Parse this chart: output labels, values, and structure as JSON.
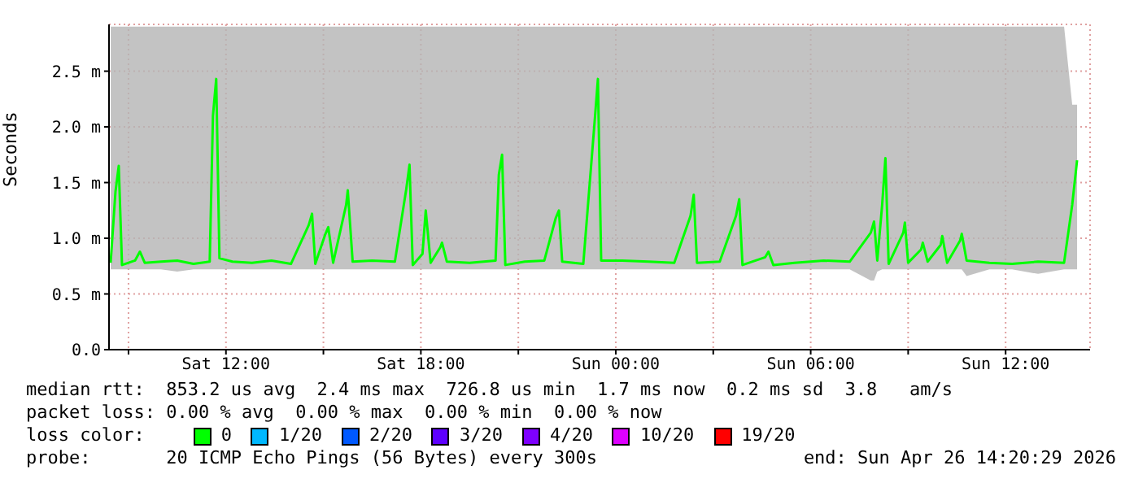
{
  "chart_data": {
    "type": "line",
    "ylabel": "Seconds",
    "x": [
      "2026-04-25T08:27",
      "2026-04-25T08:36",
      "2026-04-25T08:42",
      "2026-04-25T08:48",
      "2026-04-25T09:12",
      "2026-04-25T09:21",
      "2026-04-25T09:30",
      "2026-04-25T10:00",
      "2026-04-25T10:30",
      "2026-04-25T11:00",
      "2026-04-25T11:30",
      "2026-04-25T11:36",
      "2026-04-25T11:42",
      "2026-04-25T11:48",
      "2026-04-25T12:12",
      "2026-04-25T12:48",
      "2026-04-25T13:24",
      "2026-04-25T14:00",
      "2026-04-25T14:33",
      "2026-04-25T14:39",
      "2026-04-25T14:45",
      "2026-04-25T15:03",
      "2026-04-25T15:09",
      "2026-04-25T15:18",
      "2026-04-25T15:42",
      "2026-04-25T15:45",
      "2026-04-25T15:54",
      "2026-04-25T16:30",
      "2026-04-25T17:12",
      "2026-04-25T17:33",
      "2026-04-25T17:39",
      "2026-04-25T17:45",
      "2026-04-25T18:03",
      "2026-04-25T18:09",
      "2026-04-25T18:18",
      "2026-04-25T18:36",
      "2026-04-25T18:39",
      "2026-04-25T18:48",
      "2026-04-25T19:30",
      "2026-04-25T20:18",
      "2026-04-25T20:24",
      "2026-04-25T20:30",
      "2026-04-25T20:36",
      "2026-04-25T21:12",
      "2026-04-25T21:48",
      "2026-04-25T22:09",
      "2026-04-25T22:15",
      "2026-04-25T22:21",
      "2026-04-25T23:00",
      "2026-04-25T23:21",
      "2026-04-25T23:27",
      "2026-04-25T23:33",
      "2026-04-26T00:12",
      "2026-04-26T01:00",
      "2026-04-26T01:48",
      "2026-04-26T02:18",
      "2026-04-26T02:24",
      "2026-04-26T02:30",
      "2026-04-26T03:12",
      "2026-04-26T03:42",
      "2026-04-26T03:48",
      "2026-04-26T03:54",
      "2026-04-26T04:36",
      "2026-04-26T04:42",
      "2026-04-26T04:51",
      "2026-04-26T05:30",
      "2026-04-26T06:24",
      "2026-04-26T07:12",
      "2026-04-26T07:51",
      "2026-04-26T07:57",
      "2026-04-26T08:03",
      "2026-04-26T08:12",
      "2026-04-26T08:18",
      "2026-04-26T08:24",
      "2026-04-26T08:51",
      "2026-04-26T08:54",
      "2026-04-26T09:00",
      "2026-04-26T09:24",
      "2026-04-26T09:27",
      "2026-04-26T09:36",
      "2026-04-26T10:00",
      "2026-04-26T10:03",
      "2026-04-26T10:12",
      "2026-04-26T10:36",
      "2026-04-26T10:39",
      "2026-04-26T10:48",
      "2026-04-26T11:30",
      "2026-04-26T12:12",
      "2026-04-26T13:00",
      "2026-04-26T13:48",
      "2026-04-26T14:03",
      "2026-04-26T14:12"
    ],
    "series": [
      {
        "name": "0",
        "color": "#00ff00",
        "values": [
          0.78,
          1.42,
          1.65,
          0.76,
          0.8,
          0.88,
          0.78,
          0.79,
          0.8,
          0.77,
          0.79,
          2.1,
          2.43,
          0.82,
          0.79,
          0.78,
          0.8,
          0.77,
          1.12,
          1.22,
          0.77,
          1.03,
          1.1,
          0.78,
          1.3,
          1.43,
          0.79,
          0.8,
          0.79,
          1.44,
          1.66,
          0.76,
          0.86,
          1.25,
          0.78,
          0.92,
          0.96,
          0.79,
          0.78,
          0.8,
          1.57,
          1.75,
          0.76,
          0.79,
          0.8,
          1.18,
          1.25,
          0.79,
          0.77,
          2.05,
          2.43,
          0.8,
          0.8,
          0.79,
          0.78,
          1.2,
          1.39,
          0.78,
          0.79,
          1.2,
          1.35,
          0.76,
          0.83,
          0.88,
          0.76,
          0.78,
          0.8,
          0.79,
          1.05,
          1.15,
          0.8,
          1.3,
          1.72,
          0.77,
          1.05,
          1.14,
          0.78,
          0.9,
          0.96,
          0.79,
          0.94,
          1.02,
          0.78,
          0.98,
          1.04,
          0.8,
          0.78,
          0.77,
          0.79,
          0.78,
          1.3,
          1.7
        ],
        "lower": [
          0.72,
          0.72,
          0.72,
          0.72,
          0.72,
          0.72,
          0.72,
          0.72,
          0.7,
          0.72,
          0.72,
          0.72,
          0.72,
          0.72,
          0.72,
          0.72,
          0.72,
          0.72,
          0.72,
          0.72,
          0.72,
          0.72,
          0.72,
          0.72,
          0.72,
          0.72,
          0.72,
          0.72,
          0.72,
          0.72,
          0.72,
          0.72,
          0.72,
          0.72,
          0.72,
          0.72,
          0.72,
          0.72,
          0.72,
          0.72,
          0.72,
          0.72,
          0.72,
          0.72,
          0.72,
          0.72,
          0.72,
          0.72,
          0.72,
          0.72,
          0.72,
          0.72,
          0.72,
          0.72,
          0.72,
          0.72,
          0.72,
          0.72,
          0.72,
          0.72,
          0.72,
          0.72,
          0.72,
          0.72,
          0.72,
          0.72,
          0.72,
          0.72,
          0.62,
          0.62,
          0.7,
          0.72,
          0.72,
          0.72,
          0.72,
          0.72,
          0.72,
          0.72,
          0.72,
          0.72,
          0.72,
          0.72,
          0.72,
          0.72,
          0.72,
          0.66,
          0.72,
          0.72,
          0.68,
          0.72,
          0.72,
          0.72
        ],
        "upper": [
          2.9,
          2.9,
          2.9,
          2.9,
          2.9,
          2.9,
          2.9,
          2.9,
          2.9,
          2.9,
          2.9,
          2.9,
          2.9,
          2.9,
          2.9,
          2.9,
          2.9,
          2.9,
          2.9,
          2.9,
          2.9,
          2.9,
          2.9,
          2.9,
          2.9,
          2.9,
          2.9,
          2.9,
          2.9,
          2.9,
          2.9,
          2.9,
          2.9,
          2.9,
          2.9,
          2.9,
          2.9,
          2.9,
          2.9,
          2.9,
          2.9,
          2.9,
          2.9,
          2.9,
          2.9,
          2.9,
          2.9,
          2.9,
          2.9,
          2.9,
          2.9,
          2.9,
          2.9,
          2.9,
          2.9,
          2.9,
          2.9,
          2.9,
          2.9,
          2.9,
          2.9,
          2.9,
          2.9,
          2.9,
          2.9,
          2.9,
          2.9,
          2.9,
          2.9,
          2.9,
          2.9,
          2.9,
          2.9,
          2.9,
          2.9,
          2.9,
          2.9,
          2.9,
          2.9,
          2.9,
          2.9,
          2.9,
          2.9,
          2.9,
          2.9,
          2.9,
          2.9,
          2.9,
          2.9,
          2.9,
          2.2,
          2.2
        ]
      },
      {
        "name": "1/20",
        "color": "#00b8ff",
        "values": [
          null,
          null,
          null,
          null,
          null,
          null,
          null,
          null,
          null,
          null,
          null,
          null,
          null,
          null,
          null,
          null,
          null,
          null,
          null,
          null,
          null,
          null,
          null,
          null,
          null,
          null,
          null,
          null,
          null,
          null,
          null,
          null,
          null,
          null,
          null,
          null,
          null,
          null,
          null,
          null,
          null,
          null,
          null,
          null,
          null,
          null,
          null,
          null,
          null,
          null,
          null,
          null,
          null,
          null,
          null,
          null,
          null,
          null,
          null,
          null,
          null,
          null,
          null,
          null,
          null,
          null,
          null,
          null,
          null,
          null,
          null,
          null,
          null,
          null,
          null,
          null,
          null,
          null,
          null,
          null,
          null,
          null,
          null,
          null,
          null,
          null,
          null,
          null,
          null,
          null,
          null,
          null
        ]
      },
      {
        "name": "2/20",
        "color": "#0059ff",
        "values": [
          null,
          null,
          null,
          null,
          null,
          null,
          null,
          null,
          null,
          null,
          null,
          null,
          null,
          null,
          null,
          null,
          null,
          null,
          null,
          null,
          null,
          null,
          null,
          null,
          null,
          null,
          null,
          null,
          null,
          null,
          null,
          null,
          null,
          null,
          null,
          null,
          null,
          null,
          null,
          null,
          null,
          null,
          null,
          null,
          null,
          null,
          null,
          null,
          null,
          null,
          null,
          null,
          null,
          null,
          null,
          null,
          null,
          null,
          null,
          null,
          null,
          null,
          null,
          null,
          null,
          null,
          null,
          null,
          null,
          null,
          null,
          null,
          null,
          null,
          null,
          null,
          null,
          null,
          null,
          null,
          null,
          null,
          null,
          null,
          null,
          null,
          null,
          null,
          null,
          null,
          null,
          null
        ]
      },
      {
        "name": "3/20",
        "color": "#5e00ff",
        "values": [
          null,
          null,
          null,
          null,
          null,
          null,
          null,
          null,
          null,
          null,
          null,
          null,
          null,
          null,
          null,
          null,
          null,
          null,
          null,
          null,
          null,
          null,
          null,
          null,
          null,
          null,
          null,
          null,
          null,
          null,
          null,
          null,
          null,
          null,
          null,
          null,
          null,
          null,
          null,
          null,
          null,
          null,
          null,
          null,
          null,
          null,
          null,
          null,
          null,
          null,
          null,
          null,
          null,
          null,
          null,
          null,
          null,
          null,
          null,
          null,
          null,
          null,
          null,
          null,
          null,
          null,
          null,
          null,
          null,
          null,
          null,
          null,
          null,
          null,
          null,
          null,
          null,
          null,
          null,
          null,
          null,
          null,
          null,
          null,
          null,
          null,
          null,
          null,
          null,
          null,
          null,
          null
        ]
      },
      {
        "name": "4/20",
        "color": "#7e00ff",
        "values": [
          null,
          null,
          null,
          null,
          null,
          null,
          null,
          null,
          null,
          null,
          null,
          null,
          null,
          null,
          null,
          null,
          null,
          null,
          null,
          null,
          null,
          null,
          null,
          null,
          null,
          null,
          null,
          null,
          null,
          null,
          null,
          null,
          null,
          null,
          null,
          null,
          null,
          null,
          null,
          null,
          null,
          null,
          null,
          null,
          null,
          null,
          null,
          null,
          null,
          null,
          null,
          null,
          null,
          null,
          null,
          null,
          null,
          null,
          null,
          null,
          null,
          null,
          null,
          null,
          null,
          null,
          null,
          null,
          null,
          null,
          null,
          null,
          null,
          null,
          null,
          null,
          null,
          null,
          null,
          null,
          null,
          null,
          null,
          null,
          null,
          null,
          null,
          null,
          null,
          null,
          null,
          null
        ]
      },
      {
        "name": "10/20",
        "color": "#dd00ff",
        "values": [
          null,
          null,
          null,
          null,
          null,
          null,
          null,
          null,
          null,
          null,
          null,
          null,
          null,
          null,
          null,
          null,
          null,
          null,
          null,
          null,
          null,
          null,
          null,
          null,
          null,
          null,
          null,
          null,
          null,
          null,
          null,
          null,
          null,
          null,
          null,
          null,
          null,
          null,
          null,
          null,
          null,
          null,
          null,
          null,
          null,
          null,
          null,
          null,
          null,
          null,
          null,
          null,
          null,
          null,
          null,
          null,
          null,
          null,
          null,
          null,
          null,
          null,
          null,
          null,
          null,
          null,
          null,
          null,
          null,
          null,
          null,
          null,
          null,
          null,
          null,
          null,
          null,
          null,
          null,
          null,
          null,
          null,
          null,
          null,
          null,
          null,
          null,
          null,
          null,
          null,
          null,
          null
        ]
      },
      {
        "name": "19/20",
        "color": "#ff0000",
        "values": [
          null,
          null,
          null,
          null,
          null,
          null,
          null,
          null,
          null,
          null,
          null,
          null,
          null,
          null,
          null,
          null,
          null,
          null,
          null,
          null,
          null,
          null,
          null,
          null,
          null,
          null,
          null,
          null,
          null,
          null,
          null,
          null,
          null,
          null,
          null,
          null,
          null,
          null,
          null,
          null,
          null,
          null,
          null,
          null,
          null,
          null,
          null,
          null,
          null,
          null,
          null,
          null,
          null,
          null,
          null,
          null,
          null,
          null,
          null,
          null,
          null,
          null,
          null,
          null,
          null,
          null,
          null,
          null,
          null,
          null,
          null,
          null,
          null,
          null,
          null,
          null,
          null,
          null,
          null,
          null,
          null,
          null,
          null,
          null,
          null,
          null,
          null,
          null,
          null,
          null,
          null,
          null
        ]
      }
    ],
    "xlim": [
      "2026-04-25T08:24",
      "2026-04-26T14:36"
    ],
    "xticks": [
      {
        "value": "2026-04-25T09:00",
        "label": null
      },
      {
        "value": "2026-04-25T12:00",
        "label": "Sat 12:00"
      },
      {
        "value": "2026-04-25T15:00",
        "label": null
      },
      {
        "value": "2026-04-25T18:00",
        "label": "Sat 18:00"
      },
      {
        "value": "2026-04-25T21:00",
        "label": null
      },
      {
        "value": "2026-04-26T00:00",
        "label": "Sun 00:00"
      },
      {
        "value": "2026-04-26T03:00",
        "label": null
      },
      {
        "value": "2026-04-26T06:00",
        "label": "Sun 06:00"
      },
      {
        "value": "2026-04-26T09:00",
        "label": null
      },
      {
        "value": "2026-04-26T12:00",
        "label": "Sun 12:00"
      }
    ],
    "ylim": [
      0,
      2.92
    ],
    "yticks": [
      {
        "value": 0,
        "label": "0.0"
      },
      {
        "value": 0.5,
        "label": "0.5 m"
      },
      {
        "value": 1,
        "label": "1.0 m"
      },
      {
        "value": 1.5,
        "label": "1.5 m"
      },
      {
        "value": 2,
        "label": "2.0 m"
      },
      {
        "value": 2.5,
        "label": "2.5 m"
      }
    ],
    "grid": true,
    "legend": "bottom",
    "annotations": [
      "median rtt:  853.2 us avg  2.4 ms max  726.8 us min  1.7 ms now  0.2 ms sd  3.8   am/s",
      "packet loss: 0.00 % avg  0.00 % max  0.00 % min  0.00 % now",
      "loss color:",
      "probe:       20 ICMP Echo Pings (56 Bytes) every 300s",
      "end: Sun Apr 26 14:20:29 2026"
    ]
  }
}
